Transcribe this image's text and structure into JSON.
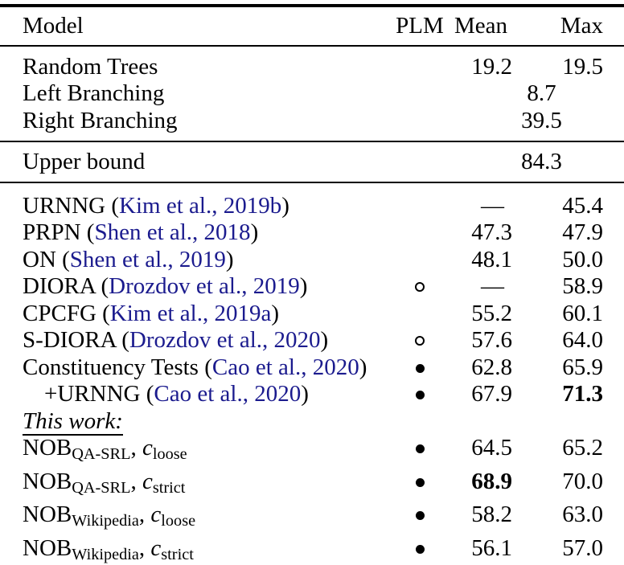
{
  "meta": {
    "colors": {
      "citation": "#1b1b8e",
      "text": "#000000"
    }
  },
  "header": {
    "model": "Model",
    "plm": "PLM",
    "mean": "Mean",
    "max": "Max"
  },
  "sections": [
    {
      "name": "baselines",
      "rows": [
        {
          "model": [
            {
              "t": "Random Trees"
            }
          ],
          "plm": "",
          "mean": "19.2",
          "max": "19.5"
        },
        {
          "model": [
            {
              "t": "Left Branching"
            }
          ],
          "span": "8.7"
        },
        {
          "model": [
            {
              "t": "Right Branching"
            }
          ],
          "span": "39.5"
        }
      ]
    },
    {
      "name": "upper-bound",
      "rows": [
        {
          "model": [
            {
              "t": "Upper bound"
            }
          ],
          "span": "84.3"
        }
      ]
    },
    {
      "name": "models",
      "rows": [
        {
          "model": [
            {
              "t": "URNNG ("
            },
            {
              "t": "Kim et al., 2019b",
              "s": "cite"
            },
            {
              "t": ")"
            }
          ],
          "plm": "",
          "mean": "—",
          "max": "45.4"
        },
        {
          "model": [
            {
              "t": "PRPN ("
            },
            {
              "t": "Shen et al., 2018",
              "s": "cite"
            },
            {
              "t": ")"
            }
          ],
          "plm": "",
          "mean": "47.3",
          "max": "47.9"
        },
        {
          "model": [
            {
              "t": "ON ("
            },
            {
              "t": "Shen et al., 2019",
              "s": "cite"
            },
            {
              "t": ")"
            }
          ],
          "plm": "",
          "mean": "48.1",
          "max": "50.0"
        },
        {
          "model": [
            {
              "t": "DIORA ("
            },
            {
              "t": "Drozdov et al., 2019",
              "s": "cite"
            },
            {
              "t": ")"
            }
          ],
          "plm": "open",
          "mean": "—",
          "max": "58.9"
        },
        {
          "model": [
            {
              "t": "CPCFG ("
            },
            {
              "t": "Kim et al., 2019a",
              "s": "cite"
            },
            {
              "t": ")"
            }
          ],
          "plm": "",
          "mean": "55.2",
          "max": "60.1"
        },
        {
          "model": [
            {
              "t": "S-DIORA ("
            },
            {
              "t": "Drozdov et al., 2020",
              "s": "cite"
            },
            {
              "t": ")"
            }
          ],
          "plm": "open",
          "mean": "57.6",
          "max": "64.0"
        },
        {
          "model": [
            {
              "t": "Constituency Tests ("
            },
            {
              "t": "Cao et al., 2020",
              "s": "cite"
            },
            {
              "t": ")"
            }
          ],
          "plm": "filled",
          "mean": "62.8",
          "max": "65.9"
        },
        {
          "model": [
            {
              "t": "+URNNG ("
            },
            {
              "t": "Cao et al., 2020",
              "s": "cite"
            },
            {
              "t": ")"
            }
          ],
          "indent": true,
          "plm": "filled",
          "mean": "67.9",
          "max": "71.3",
          "max_bold": true
        },
        {
          "label": "This work:"
        },
        {
          "model": [
            {
              "t": "NOB"
            },
            {
              "t": "QA-SRL",
              "s": "sub"
            },
            {
              "t": ", "
            },
            {
              "t": "c",
              "s": "ital"
            },
            {
              "t": "loose",
              "s": "sub"
            }
          ],
          "plm": "filled",
          "mean": "64.5",
          "max": "65.2"
        },
        {
          "model": [
            {
              "t": "NOB"
            },
            {
              "t": "QA-SRL",
              "s": "sub"
            },
            {
              "t": ", "
            },
            {
              "t": "c",
              "s": "ital"
            },
            {
              "t": "strict",
              "s": "sub"
            }
          ],
          "plm": "filled",
          "mean": "68.9",
          "mean_bold": true,
          "max": "70.0"
        },
        {
          "model": [
            {
              "t": "NOB"
            },
            {
              "t": "Wikipedia",
              "s": "sub"
            },
            {
              "t": ", "
            },
            {
              "t": "c",
              "s": "ital"
            },
            {
              "t": "loose",
              "s": "sub"
            }
          ],
          "plm": "filled",
          "mean": "58.2",
          "max": "63.0"
        },
        {
          "model": [
            {
              "t": "NOB"
            },
            {
              "t": "Wikipedia",
              "s": "sub"
            },
            {
              "t": ", "
            },
            {
              "t": "c",
              "s": "ital"
            },
            {
              "t": "strict",
              "s": "sub"
            }
          ],
          "plm": "filled",
          "mean": "56.1",
          "max": "57.0"
        }
      ]
    }
  ]
}
